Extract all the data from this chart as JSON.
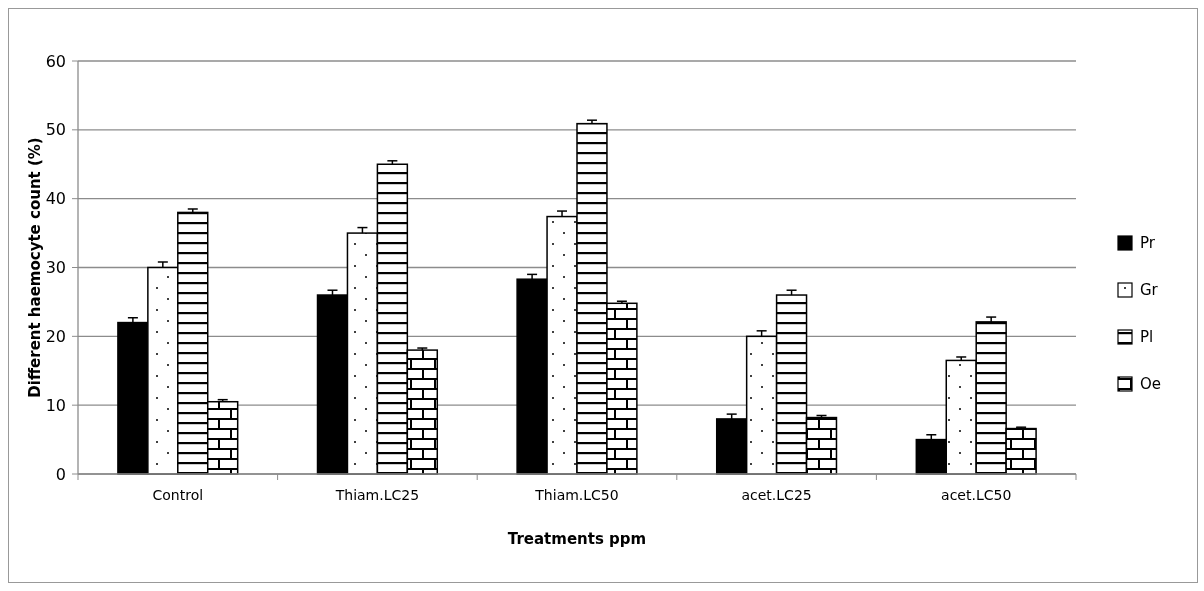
{
  "chart_data": {
    "type": "bar",
    "xlabel": "Treatments ppm",
    "ylabel": "Different haemocyte count (%)",
    "categories": [
      "Control",
      "Thiam.LC25",
      "Thiam.LC50",
      "acet.LC25",
      "acet.LC50"
    ],
    "series": [
      {
        "name": "Pr",
        "color": "#000000",
        "values": [
          22,
          26,
          28.3,
          8,
          5
        ],
        "errors": [
          [
            22,
            22.7
          ],
          [
            26,
            26.7
          ],
          [
            28.3,
            29
          ],
          [
            8,
            8.7
          ],
          [
            5,
            5.7
          ]
        ]
      },
      {
        "name": "Gr",
        "values": [
          30,
          35,
          37.4,
          20,
          16.5
        ],
        "errors": [
          [
            30,
            30.8
          ],
          [
            35,
            35.8
          ],
          [
            37.4,
            38.2
          ],
          [
            20,
            20.8
          ],
          [
            16.5,
            17
          ]
        ]
      },
      {
        "name": "Pl",
        "values": [
          38,
          45,
          50.9,
          26,
          22.1
        ],
        "errors": [
          [
            38,
            38.5
          ],
          [
            45,
            45.5
          ],
          [
            50.9,
            51.4
          ],
          [
            26,
            26.7
          ],
          [
            22.1,
            22.8
          ]
        ]
      },
      {
        "name": "Oe",
        "values": [
          10.5,
          18,
          24.8,
          8.2,
          6.6
        ],
        "errors": [
          [
            10.5,
            10.8
          ],
          [
            18,
            18.3
          ],
          [
            24.8,
            25.1
          ],
          [
            8.2,
            8.5
          ],
          [
            6.6,
            6.8
          ]
        ]
      }
    ],
    "ylim": [
      0,
      60
    ],
    "yticks": [
      0,
      10,
      20,
      30,
      40,
      50,
      60
    ],
    "grid": "y",
    "legend": "right"
  }
}
